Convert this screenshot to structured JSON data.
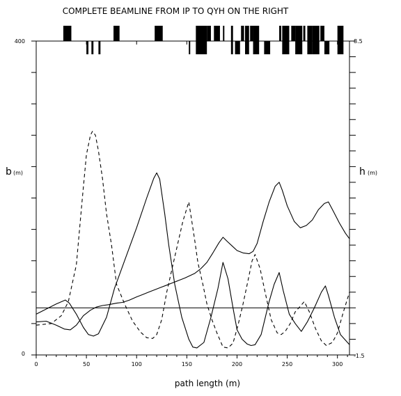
{
  "chart_data": {
    "type": "line",
    "title": "COMPLETE BEAMLINE FROM IP TO QYH ON THE RIGHT",
    "xlabel": "path length (m)",
    "ylabel_left": {
      "symbol": "b",
      "unit": "(m)"
    },
    "ylabel_right": {
      "symbol": "h",
      "unit": "(m)"
    },
    "xlim": [
      0,
      312
    ],
    "ylim_left": [
      0,
      400
    ],
    "ylim_right": [
      -1.5,
      8.5
    ],
    "x_ticks": [
      0,
      50,
      100,
      150,
      200,
      250,
      300
    ],
    "y_left_tick_labels": [
      "0",
      "400"
    ],
    "y_right_tick_labels": [
      "-1.5",
      "8.5"
    ],
    "grid": false,
    "reference_line": {
      "axis": "right",
      "y": 0
    },
    "series": [
      {
        "style": "solid",
        "axis": "left",
        "x": [
          0,
          20,
          29,
          33,
          40,
          47,
          52,
          57,
          62,
          70,
          78,
          88,
          100,
          110,
          117,
          120,
          123,
          128,
          132,
          138,
          145,
          152,
          156,
          160,
          167,
          174,
          181,
          186,
          191,
          196,
          200,
          205,
          210,
          214,
          218,
          224,
          232,
          237,
          242,
          246,
          252,
          258,
          264,
          270,
          277,
          284,
          288,
          291,
          297,
          303,
          312
        ],
        "y": [
          52,
          65,
          70,
          66,
          52,
          35,
          26,
          24,
          27,
          48,
          85,
          120,
          162,
          200,
          225,
          232,
          224,
          180,
          140,
          90,
          48,
          20,
          10,
          9,
          16,
          48,
          85,
          118,
          97,
          60,
          32,
          20,
          14,
          12,
          13,
          26,
          68,
          90,
          105,
          82,
          52,
          40,
          30,
          42,
          60,
          80,
          88,
          76,
          48,
          26,
          13
        ]
      },
      {
        "style": "dashed",
        "axis": "left",
        "x": [
          0,
          15,
          25,
          32,
          40,
          46,
          50,
          54,
          56,
          59,
          62,
          66,
          70,
          75,
          80,
          88,
          96,
          104,
          110,
          116,
          120,
          125,
          130,
          138,
          146,
          152,
          155,
          158,
          161,
          166,
          170,
          175,
          180,
          186,
          191,
          196,
          201,
          206,
          211,
          215,
          218,
          223,
          228,
          234,
          240,
          244,
          248,
          253,
          258,
          263,
          267,
          272,
          278,
          284,
          289,
          295,
          300,
          306,
          312
        ],
        "y": [
          38,
          40,
          50,
          68,
          115,
          200,
          255,
          280,
          285,
          280,
          260,
          225,
          180,
          140,
          90,
          65,
          43,
          29,
          22,
          21,
          26,
          45,
          80,
          125,
          170,
          195,
          170,
          145,
          118,
          90,
          65,
          45,
          28,
          10,
          9,
          15,
          38,
          65,
          95,
          120,
          128,
          110,
          80,
          45,
          28,
          26,
          30,
          40,
          55,
          62,
          68,
          55,
          34,
          18,
          12,
          16,
          28,
          55,
          80
        ]
      },
      {
        "style": "solid",
        "axis": "left",
        "x": [
          0,
          10,
          20,
          28,
          34,
          40,
          47,
          54,
          60,
          66,
          72,
          80,
          86,
          93,
          100,
          106,
          112,
          118,
          124,
          130,
          136,
          142,
          148,
          153,
          158,
          164,
          170,
          176,
          182,
          186,
          190,
          195,
          200,
          206,
          212,
          216,
          220,
          226,
          232,
          238,
          242,
          245,
          250,
          257,
          263,
          269,
          275,
          281,
          287,
          291,
          296,
          302,
          308,
          312
        ],
        "y": [
          42,
          43,
          38,
          33,
          32,
          38,
          50,
          57,
          61,
          63,
          64,
          66,
          67,
          70,
          74,
          77,
          80,
          83,
          86,
          89,
          92,
          95,
          98,
          101,
          104,
          110,
          118,
          130,
          143,
          150,
          145,
          139,
          133,
          130,
          129,
          132,
          142,
          170,
          195,
          215,
          220,
          210,
          190,
          170,
          162,
          165,
          172,
          185,
          193,
          195,
          183,
          168,
          155,
          148
        ]
      }
    ]
  },
  "element_bars": {
    "x": [
      [
        27,
        35
      ],
      [
        50,
        52
      ],
      [
        55,
        57
      ],
      [
        62,
        64
      ],
      [
        77,
        83
      ],
      [
        118,
        126
      ],
      [
        152,
        153
      ],
      [
        159,
        170
      ],
      [
        170,
        174
      ],
      [
        177,
        183
      ],
      [
        186,
        187
      ],
      [
        194,
        196
      ],
      [
        198,
        203
      ],
      [
        204,
        207
      ],
      [
        208,
        212
      ],
      [
        213,
        216
      ],
      [
        216,
        222
      ],
      [
        227,
        233
      ],
      [
        242,
        244
      ],
      [
        245,
        252
      ],
      [
        254,
        258
      ],
      [
        258,
        265
      ],
      [
        266,
        268
      ],
      [
        270,
        275
      ],
      [
        275,
        282
      ],
      [
        283,
        287
      ],
      [
        287,
        292
      ],
      [
        300,
        306
      ]
    ],
    "side": [
      "up",
      "down",
      "down",
      "down",
      "up",
      "up",
      "down",
      "both",
      "up",
      "up",
      "up",
      "both",
      "down",
      "up",
      "both",
      "up",
      "both",
      "down",
      "up",
      "both",
      "up",
      "both",
      "up",
      "both",
      "both",
      "up",
      "down",
      "both"
    ]
  }
}
